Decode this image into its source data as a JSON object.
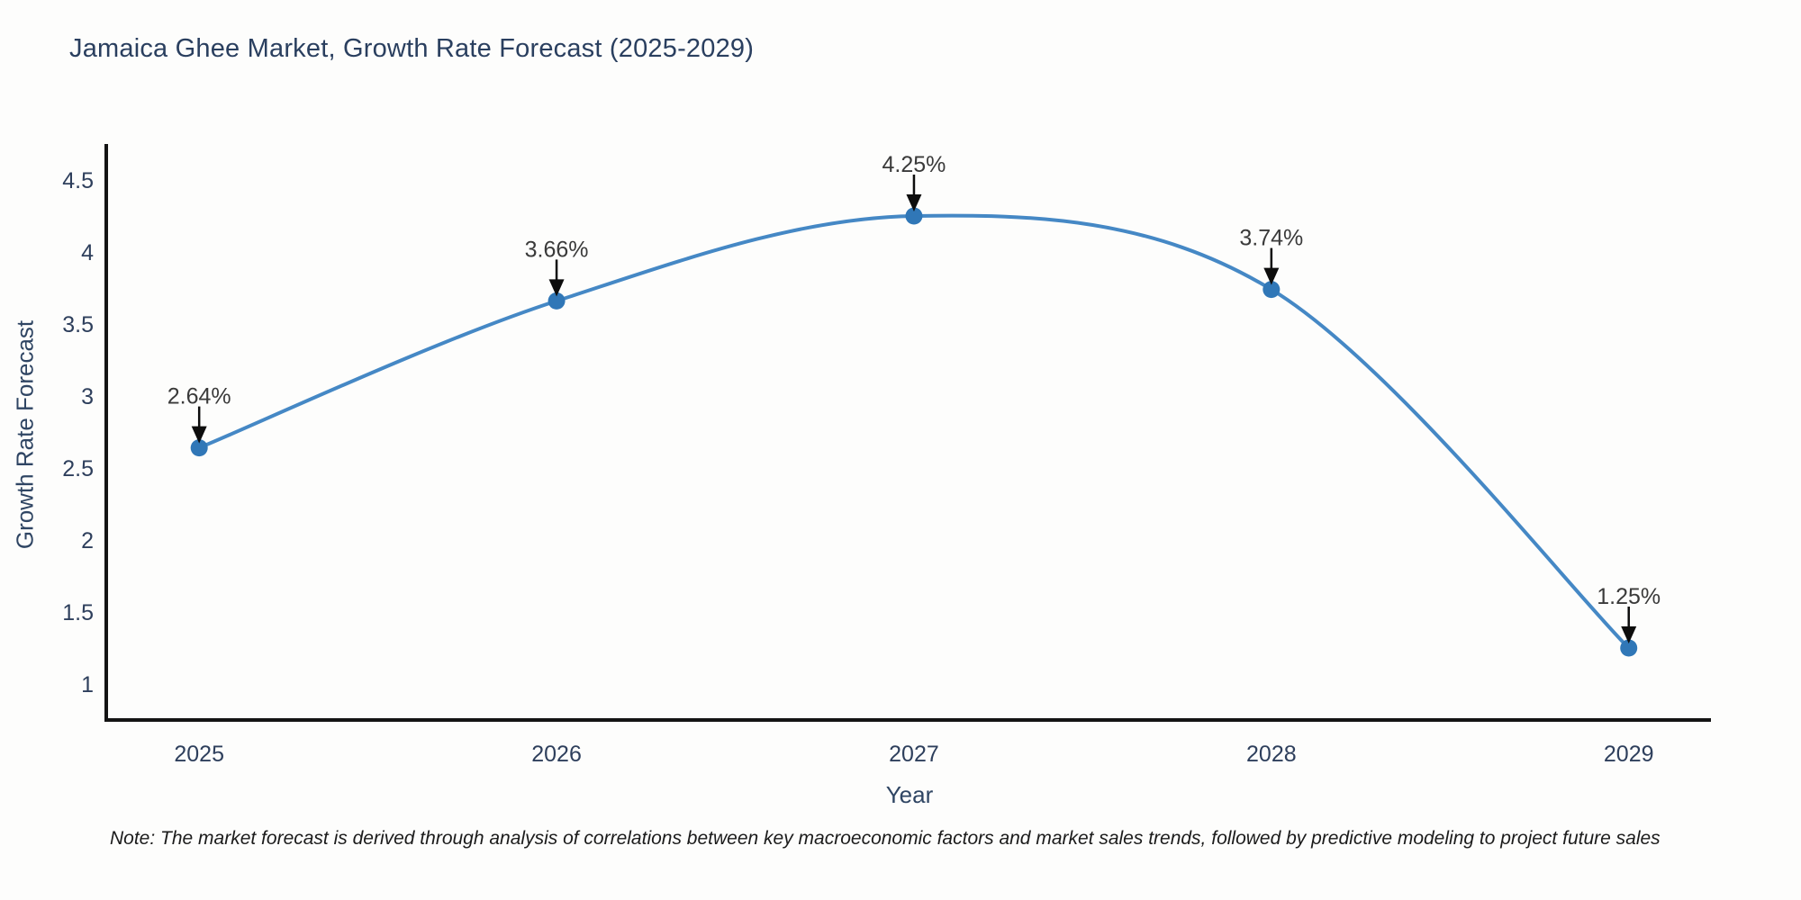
{
  "chart": {
    "note": "Note: The market forecast is derived through analysis of correlations between key macroeconomic factors and market sales trends, followed by predictive modeling to project future sales"
  },
  "chart_data": {
    "type": "line",
    "title": "Jamaica Ghee Market, Growth Rate Forecast (2025-2029)",
    "xlabel": "Year",
    "ylabel": "Growth Rate Forecast",
    "x": [
      2025,
      2026,
      2027,
      2028,
      2029
    ],
    "values": [
      2.64,
      3.66,
      4.25,
      3.74,
      1.25
    ],
    "point_labels": [
      "2.64%",
      "3.66%",
      "4.25%",
      "3.74%",
      "1.25%"
    ],
    "xticks": [
      2025,
      2026,
      2027,
      2028,
      2029
    ],
    "yticks": [
      1,
      1.5,
      2,
      2.5,
      3,
      3.5,
      4,
      4.5
    ],
    "xlim": [
      2024.74,
      2029.23
    ],
    "ylim": [
      0.75,
      4.75
    ],
    "grid": false,
    "legend": "none",
    "annotations": "value labels with black down-arrows above each point",
    "line_color": "#4588c5",
    "marker_color": "#3077b7",
    "arrow_color": "#0d0d0d",
    "axis_color": "#141414",
    "background_color": "#fdfdfc"
  }
}
